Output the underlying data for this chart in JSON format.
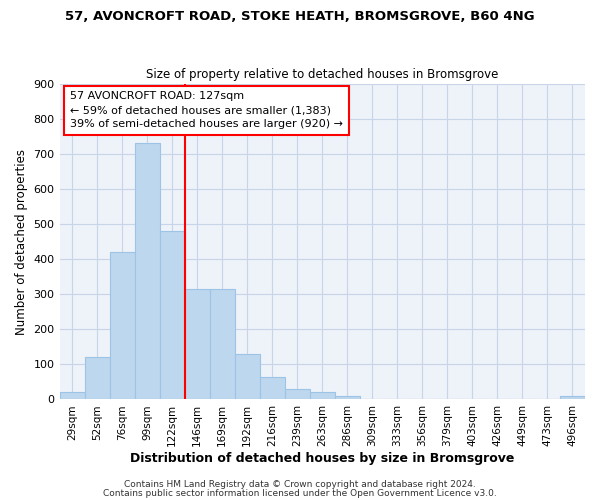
{
  "title_line1": "57, AVONCROFT ROAD, STOKE HEATH, BROMSGROVE, B60 4NG",
  "title_line2": "Size of property relative to detached houses in Bromsgrove",
  "xlabel": "Distribution of detached houses by size in Bromsgrove",
  "ylabel": "Number of detached properties",
  "bin_labels": [
    "29sqm",
    "52sqm",
    "76sqm",
    "99sqm",
    "122sqm",
    "146sqm",
    "169sqm",
    "192sqm",
    "216sqm",
    "239sqm",
    "263sqm",
    "286sqm",
    "309sqm",
    "333sqm",
    "356sqm",
    "379sqm",
    "403sqm",
    "426sqm",
    "449sqm",
    "473sqm",
    "496sqm"
  ],
  "bar_values": [
    20,
    120,
    420,
    730,
    480,
    315,
    315,
    130,
    65,
    30,
    20,
    10,
    0,
    0,
    0,
    0,
    0,
    0,
    0,
    0,
    10
  ],
  "bar_color": "#bdd7ee",
  "bar_edge_color": "#9dc3e6",
  "grid_color": "#c8d4e8",
  "annotation_line1": "57 AVONCROFT ROAD: 127sqm",
  "annotation_line2": "← 59% of detached houses are smaller (1,383)",
  "annotation_line3": "39% of semi-detached houses are larger (920) →",
  "vline_position": 4,
  "ylim": [
    0,
    900
  ],
  "yticks": [
    0,
    100,
    200,
    300,
    400,
    500,
    600,
    700,
    800,
    900
  ],
  "footer_line1": "Contains HM Land Registry data © Crown copyright and database right 2024.",
  "footer_line2": "Contains public sector information licensed under the Open Government Licence v3.0.",
  "background_color": "#eef2f9",
  "fig_bg": "#ffffff"
}
